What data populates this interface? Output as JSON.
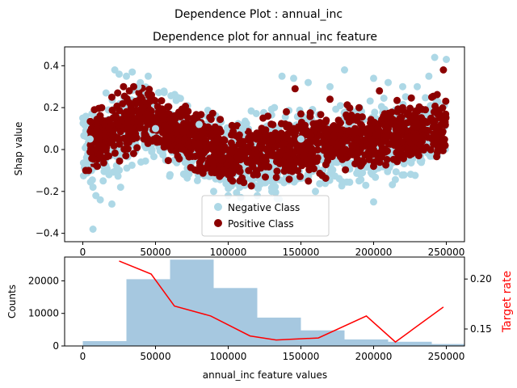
{
  "figure": {
    "suptitle": "Dependence Plot : annual_inc"
  },
  "chart_data": [
    {
      "type": "scatter",
      "title": "Dependence plot for annual_inc feature",
      "xlabel": "",
      "ylabel": "Shap value",
      "xlim": [
        -12500,
        262500
      ],
      "ylim": [
        -0.44,
        0.49
      ],
      "xticks": [
        0,
        50000,
        100000,
        150000,
        200000,
        250000
      ],
      "yticks": [
        -0.4,
        -0.2,
        0.0,
        0.2,
        0.4
      ],
      "legend": {
        "placement": "lower-center",
        "entries": [
          "Negative Class",
          "Positive Class"
        ]
      },
      "series": [
        {
          "name": "Negative Class",
          "color": "#add8e6",
          "points": [
            [
              0,
              0.15
            ],
            [
              3000,
              -0.08
            ],
            [
              5000,
              0.05
            ],
            [
              6000,
              -0.1
            ],
            [
              7000,
              -0.18
            ],
            [
              7000,
              -0.38
            ],
            [
              9000,
              -0.22
            ],
            [
              12000,
              -0.24
            ],
            [
              14000,
              -0.15
            ],
            [
              16000,
              0.27
            ],
            [
              18000,
              -0.12
            ],
            [
              20000,
              -0.26
            ],
            [
              22000,
              0.38
            ],
            [
              25000,
              0.36
            ],
            [
              26000,
              -0.18
            ],
            [
              30000,
              0.35
            ],
            [
              34000,
              0.37
            ],
            [
              38000,
              0.3
            ],
            [
              40000,
              -0.06
            ],
            [
              45000,
              0.35
            ],
            [
              50000,
              0.1
            ],
            [
              60000,
              -0.12
            ],
            [
              70000,
              -0.12
            ],
            [
              80000,
              0.12
            ],
            [
              90000,
              -0.2
            ],
            [
              100000,
              -0.22
            ],
            [
              110000,
              0.1
            ],
            [
              120000,
              -0.22
            ],
            [
              130000,
              -0.2
            ],
            [
              137000,
              0.35
            ],
            [
              145000,
              0.34
            ],
            [
              150000,
              0.05
            ],
            [
              155000,
              0.32
            ],
            [
              160000,
              -0.2
            ],
            [
              170000,
              0.3
            ],
            [
              180000,
              0.38
            ],
            [
              190000,
              -0.15
            ],
            [
              200000,
              0.34
            ],
            [
              200000,
              -0.25
            ],
            [
              210000,
              0.32
            ],
            [
              220000,
              0.3
            ],
            [
              230000,
              0.3
            ],
            [
              238000,
              0.35
            ],
            [
              242000,
              0.44
            ],
            [
              250000,
              0.43
            ]
          ]
        },
        {
          "name": "Positive Class",
          "color": "#8b0000",
          "points": [
            [
              2000,
              -0.1
            ],
            [
              4000,
              -0.1
            ],
            [
              8000,
              0.19
            ],
            [
              10000,
              -0.08
            ],
            [
              13000,
              0.2
            ],
            [
              15000,
              0.12
            ],
            [
              18000,
              0.1
            ],
            [
              20000,
              0.25
            ],
            [
              24000,
              0.27
            ],
            [
              28000,
              0.3
            ],
            [
              30000,
              0.18
            ],
            [
              32000,
              0.28
            ],
            [
              35000,
              0.3
            ],
            [
              40000,
              0.25
            ],
            [
              45000,
              0.12
            ],
            [
              50000,
              0.15
            ],
            [
              55000,
              0.08
            ],
            [
              60000,
              0.1
            ],
            [
              70000,
              0.05
            ],
            [
              80000,
              -0.02
            ],
            [
              90000,
              -0.1
            ],
            [
              100000,
              -0.12
            ],
            [
              108000,
              -0.15
            ],
            [
              120000,
              -0.12
            ],
            [
              124000,
              0.15
            ],
            [
              130000,
              0.05
            ],
            [
              140000,
              0.18
            ],
            [
              142000,
              -0.1
            ],
            [
              146000,
              0.29
            ],
            [
              150000,
              0.17
            ],
            [
              160000,
              0.1
            ],
            [
              170000,
              0.24
            ],
            [
              180000,
              0.05
            ],
            [
              190000,
              0.2
            ],
            [
              200000,
              -0.08
            ],
            [
              204000,
              0.28
            ],
            [
              210000,
              0.1
            ],
            [
              220000,
              0.2
            ],
            [
              230000,
              0.15
            ],
            [
              240000,
              0.25
            ],
            [
              248000,
              0.38
            ]
          ]
        }
      ]
    },
    {
      "type": "bar",
      "title": "",
      "xlabel": "annual_inc feature values",
      "ylabel": "Counts",
      "y2label": "Target rate",
      "xlim": [
        -12500,
        262500
      ],
      "ylim": [
        0,
        27300
      ],
      "y2lim": [
        0.133,
        0.222
      ],
      "xticks": [
        0,
        50000,
        100000,
        150000,
        200000,
        250000
      ],
      "yticks": [
        0,
        10000,
        20000
      ],
      "y2ticks": [
        0.15,
        0.2
      ],
      "bars": {
        "color": "#a6c8e0",
        "bin_edges": [
          0,
          30000,
          60000,
          90000,
          120000,
          150000,
          180000,
          210000,
          240000,
          270000
        ],
        "counts": [
          1500,
          20500,
          26500,
          17800,
          8700,
          4800,
          2000,
          1300,
          600
        ]
      },
      "target_rate_line": {
        "color": "#ff0000",
        "x": [
          25000,
          47000,
          63000,
          88000,
          115000,
          133000,
          162000,
          195000,
          215000,
          248000
        ],
        "y": [
          0.218,
          0.205,
          0.173,
          0.163,
          0.143,
          0.139,
          0.141,
          0.163,
          0.137,
          0.172
        ]
      }
    }
  ]
}
